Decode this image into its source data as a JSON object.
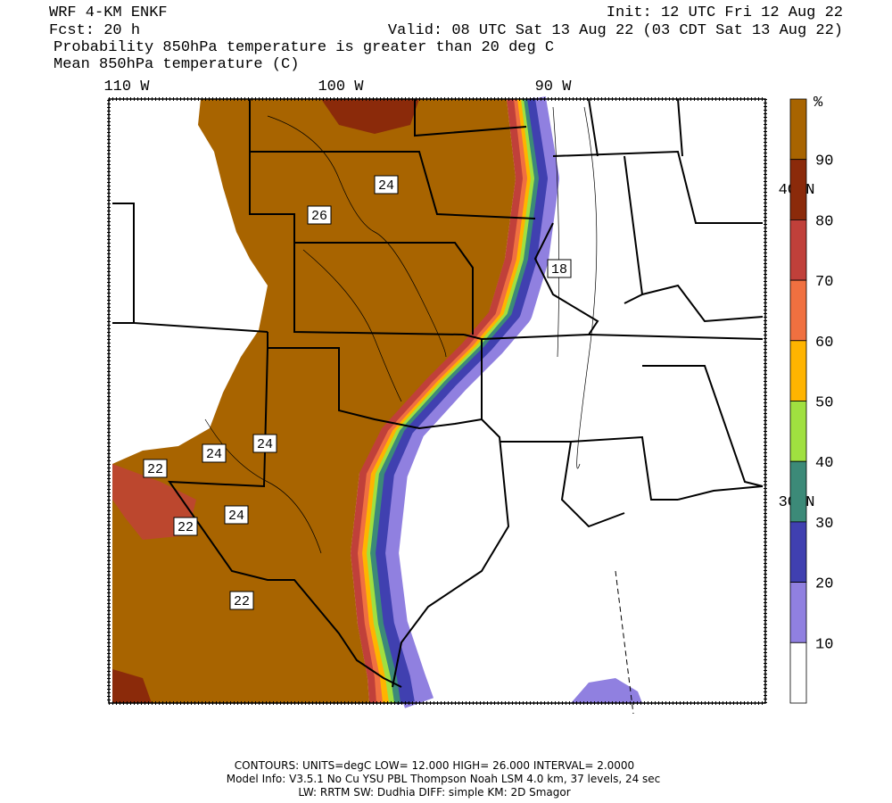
{
  "header": {
    "model": "WRF 4-KM ENKF",
    "init": "Init: 12 UTC Fri 12 Aug 22",
    "forecast": "Fcst:   20 h",
    "valid": "Valid: 08 UTC Sat 13 Aug 22 (03 CDT Sat 13 Aug 22)",
    "field": "Probability 850hPa temperature is greater than 20 deg C",
    "contours": "Mean 850hPa temperature (C)"
  },
  "map": {
    "lon_labels": [
      "110 W",
      "100 W",
      "90 W"
    ],
    "lat_labels": [
      "40 N",
      "30 N"
    ],
    "contour_labels": [
      "24",
      "26",
      "18",
      "24",
      "24",
      "22",
      "24",
      "22",
      "22"
    ]
  },
  "colorbar": {
    "unit": "%",
    "labels": [
      "90",
      "80",
      "70",
      "60",
      "50",
      "40",
      "30",
      "20",
      "10"
    ],
    "colors": [
      "#a86400",
      "#8b2a0a",
      "#c0403a",
      "#f07040",
      "#ffb400",
      "#a0e040",
      "#3c8a78",
      "#4040b0",
      "#9080e0",
      "#ffffff"
    ]
  },
  "footer": [
    "CONTOURS:  UNITS=degC  LOW=   12.000       HIGH=  26.000       INTERVAL=    2.0000",
    "Model Info: V3.5.1    No Cu    YSU PBL   Thompson      Noah LSM   4.0 km,   37 levels,     24 sec",
    "LW: RRTM  SW: Dudhia   DIFF: simple  KM: 2D Smagor"
  ]
}
